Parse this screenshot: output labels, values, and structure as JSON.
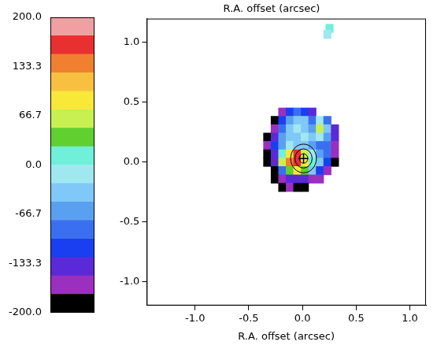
{
  "chart_data": {
    "type": "heatmap",
    "title": "R.A. offset (arcsec)",
    "x_label": "R.A. offset (arcsec)",
    "xlim": [
      -1.45,
      1.15
    ],
    "xticks": [
      {
        "value": -1.0,
        "label": "-1.0"
      },
      -0.5,
      {
        "value": 0,
        "label": "0.0"
      },
      0.5,
      {
        "value": 1.0,
        "label": "1.0"
      }
    ],
    "ylim": [
      -1.2,
      1.2
    ],
    "yticks": [
      {
        "value": -1.0,
        "label": "-1.0"
      },
      -0.5,
      {
        "value": 0,
        "label": "0.0"
      },
      0.5,
      {
        "value": 1.0,
        "label": "1.0"
      }
    ],
    "grid": false,
    "cell_size": 0.07,
    "cells": [
      [
        -0.19,
        0.42,
        -170
      ],
      [
        -0.12,
        0.42,
        -120
      ],
      [
        -0.05,
        0.42,
        -90
      ],
      [
        0.02,
        0.42,
        -110
      ],
      [
        0.09,
        0.42,
        -150
      ],
      [
        -0.26,
        0.35,
        -180
      ],
      [
        -0.19,
        0.35,
        -120
      ],
      [
        -0.12,
        0.35,
        -60
      ],
      [
        -0.05,
        0.35,
        -30
      ],
      [
        0.02,
        0.35,
        -50
      ],
      [
        0.09,
        0.35,
        -90
      ],
      [
        0.16,
        0.35,
        -20
      ],
      [
        0.23,
        0.35,
        -100
      ],
      [
        -0.26,
        0.28,
        -170
      ],
      [
        -0.19,
        0.28,
        -90
      ],
      [
        -0.12,
        0.28,
        -40
      ],
      [
        -0.05,
        0.28,
        -20
      ],
      [
        0.02,
        0.28,
        -40
      ],
      [
        0.09,
        0.28,
        -60
      ],
      [
        0.16,
        0.28,
        60
      ],
      [
        0.23,
        0.28,
        -30
      ],
      [
        0.3,
        0.28,
        -140
      ],
      [
        -0.33,
        0.21,
        -180
      ],
      [
        -0.26,
        0.21,
        -150
      ],
      [
        -0.19,
        0.21,
        -70
      ],
      [
        -0.12,
        0.21,
        -30
      ],
      [
        -0.05,
        0.21,
        -50
      ],
      [
        0.02,
        0.21,
        -20
      ],
      [
        0.09,
        0.21,
        -40
      ],
      [
        0.16,
        0.21,
        -10
      ],
      [
        0.23,
        0.21,
        -60
      ],
      [
        0.3,
        0.21,
        -150
      ],
      [
        -0.33,
        0.14,
        -160
      ],
      [
        -0.26,
        0.14,
        -110
      ],
      [
        -0.19,
        0.14,
        -60
      ],
      [
        -0.12,
        0.14,
        -10
      ],
      [
        -0.05,
        0.14,
        -40
      ],
      [
        0.02,
        0.14,
        -30
      ],
      [
        0.09,
        0.14,
        -60
      ],
      [
        0.16,
        0.14,
        -80
      ],
      [
        0.23,
        0.14,
        -90
      ],
      [
        0.3,
        0.14,
        -170
      ],
      [
        -0.33,
        0.07,
        -190
      ],
      [
        -0.26,
        0.07,
        -130
      ],
      [
        -0.19,
        0.07,
        20
      ],
      [
        -0.12,
        0.07,
        90
      ],
      [
        -0.05,
        0.07,
        160
      ],
      [
        0.02,
        0.07,
        60
      ],
      [
        0.09,
        0.07,
        -20
      ],
      [
        0.16,
        0.07,
        -70
      ],
      [
        0.23,
        0.07,
        -100
      ],
      [
        0.3,
        0.07,
        -160
      ],
      [
        -0.33,
        0.0,
        -200
      ],
      [
        -0.26,
        0.0,
        -140
      ],
      [
        -0.19,
        0.0,
        60
      ],
      [
        -0.12,
        0.0,
        140
      ],
      [
        -0.05,
        0.0,
        170
      ],
      [
        0.02,
        0.0,
        80
      ],
      [
        0.09,
        0.0,
        10
      ],
      [
        0.16,
        0.0,
        -50
      ],
      [
        0.23,
        0.0,
        -110
      ],
      [
        0.3,
        0.0,
        -180
      ],
      [
        -0.26,
        -0.07,
        -180
      ],
      [
        -0.19,
        -0.07,
        -90
      ],
      [
        -0.12,
        -0.07,
        40
      ],
      [
        -0.05,
        -0.07,
        80
      ],
      [
        0.02,
        -0.07,
        30
      ],
      [
        0.09,
        -0.07,
        -40
      ],
      [
        0.16,
        -0.07,
        -120
      ],
      [
        0.23,
        -0.07,
        -170
      ],
      [
        -0.26,
        -0.14,
        -200
      ],
      [
        -0.19,
        -0.14,
        -160
      ],
      [
        -0.12,
        -0.14,
        -150
      ],
      [
        -0.05,
        -0.14,
        -130
      ],
      [
        0.02,
        -0.14,
        -150
      ],
      [
        0.09,
        -0.14,
        -170
      ],
      [
        0.16,
        -0.14,
        -160
      ],
      [
        -0.19,
        -0.21,
        -190
      ],
      [
        -0.12,
        -0.21,
        -170
      ],
      [
        -0.05,
        -0.21,
        -180
      ],
      [
        0.02,
        -0.21,
        -190
      ],
      [
        0.25,
        1.12,
        10
      ],
      [
        0.23,
        1.07,
        -20
      ]
    ],
    "contours": {
      "center": [
        0.01,
        0.03
      ],
      "radii": [
        0.04,
        0.08,
        0.12
      ]
    },
    "marker": "cross",
    "colorbar": {
      "range": [
        -200,
        200
      ],
      "ticks": [
        {
          "value": -200,
          "label": "-200.0"
        },
        -133.3,
        -66.7,
        {
          "value": 0,
          "label": "0.0"
        },
        66.7,
        133.3,
        {
          "value": 200,
          "label": "200.0"
        }
      ],
      "colors": [
        "#000000",
        "#9a2fc0",
        "#5a2ad8",
        "#1a3ff0",
        "#3a70f0",
        "#5aa0f0",
        "#80c8f8",
        "#a0e8f0",
        "#70f0d8",
        "#60d030",
        "#c8f050",
        "#f8e838",
        "#f8c040",
        "#f08030",
        "#e83030",
        "#f0a0a0"
      ]
    }
  }
}
